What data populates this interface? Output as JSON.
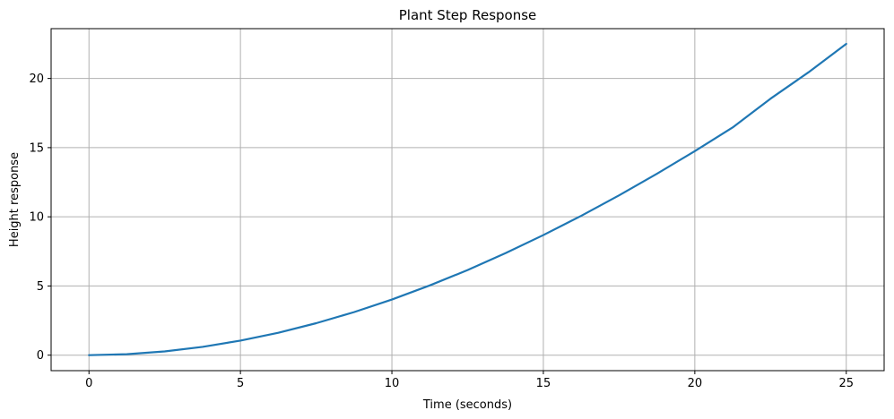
{
  "chart_data": {
    "type": "line",
    "title": "Plant Step Response",
    "xlabel": "Time (seconds)",
    "ylabel": "Height response",
    "xlim": [
      -1.25,
      26.25
    ],
    "ylim": [
      -1.12,
      23.6
    ],
    "xticks": [
      0,
      5,
      10,
      15,
      20,
      25
    ],
    "yticks": [
      0,
      5,
      10,
      15,
      20
    ],
    "x_tick_labels": [
      "0",
      "5",
      "10",
      "15",
      "20",
      "25"
    ],
    "y_tick_labels": [
      "0",
      "5",
      "10",
      "15",
      "20"
    ],
    "grid": true,
    "line_color": "#1f77b4",
    "grid_color": "#b0b0b0",
    "series": [
      {
        "x": [
          0,
          1.25,
          2.5,
          3.75,
          5,
          6.25,
          7.5,
          8.75,
          10,
          11.25,
          12.5,
          13.75,
          15,
          16.25,
          17.5,
          18.75,
          20,
          21.25,
          22.5,
          23.75,
          25
        ],
        "y": [
          0,
          0.07,
          0.27,
          0.6,
          1.05,
          1.62,
          2.31,
          3.11,
          4.02,
          5.04,
          6.15,
          7.37,
          8.68,
          10.07,
          11.55,
          13.11,
          14.75,
          16.46,
          18.54,
          20.44,
          22.5
        ]
      }
    ]
  }
}
